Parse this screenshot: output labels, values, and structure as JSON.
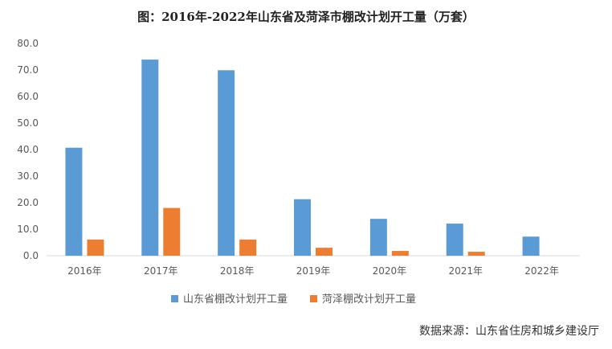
{
  "chart_data": {
    "type": "bar",
    "title": "图：2016年-2022年山东省及菏泽市棚改计划开工量（万套）",
    "categories": [
      "2016年",
      "2017年",
      "2018年",
      "2019年",
      "2020年",
      "2021年",
      "2022年"
    ],
    "series": [
      {
        "name": "山东省棚改计划开工量",
        "color": "#5b9bd5",
        "values": [
          40.7,
          73.9,
          69.9,
          21.3,
          13.9,
          12.1,
          7.2
        ]
      },
      {
        "name": "菏泽棚改计划开工量",
        "color": "#ed7d31",
        "values": [
          6.1,
          18.0,
          6.1,
          3.0,
          1.8,
          1.5,
          0
        ]
      }
    ],
    "ylim": [
      0,
      80
    ],
    "yticks": [
      "0.0",
      "10.0",
      "20.0",
      "30.0",
      "40.0",
      "50.0",
      "60.0",
      "70.0",
      "80.0"
    ],
    "grid": false,
    "legend_position": "bottom",
    "source": "数据来源：山东省住房和城乡建设厅",
    "axis_color": "#d9d9d9"
  }
}
